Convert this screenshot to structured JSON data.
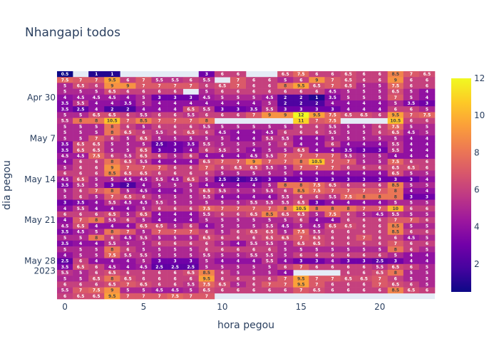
{
  "chart_data": {
    "type": "heatmap",
    "title": "Nhangapi todos",
    "xlabel": "hora pegou",
    "ylabel": "dia pegou",
    "x_range": [
      -0.5,
      23.5
    ],
    "x_tick_values": [
      0,
      5,
      10,
      15,
      20
    ],
    "x_tick_labels": [
      "0",
      "5",
      "10",
      "15",
      "20"
    ],
    "y_tick_labels": [
      "Apr 30",
      "May 7",
      "May 14",
      "May 21",
      "May 28\n2023"
    ],
    "y_tick_row_index": [
      4,
      11,
      18,
      25,
      32
    ],
    "colorscale": [
      "#0d0887",
      "#46039f",
      "#7201a8",
      "#9c179e",
      "#bd3786",
      "#d8576b",
      "#ed7953",
      "#fb9f3a",
      "#fdca26",
      "#f0f921"
    ],
    "color_range": [
      0.5,
      12
    ],
    "colorbar_ticks": [
      2,
      4,
      6,
      8,
      10,
      12
    ],
    "rows": [
      "0.5,,1,1,,,,,,3,6,6,,,6.5,7.5,6,6,6.5,6,6,8.5,7,6.5",
      "7.5,7,7,9.5,6,7,5.5,5.5,6,5.5,,7,6,6,5,6,9,7,6.5,6,6,9,6,6",
      "5,6.5,6,9,9,7,7,7,7,6,6.5,7,6,6,8,9.5,6.5,7,6.5,5,5,7.5,6,6",
      "5,5,5,6.5,6,6,6,6,,5,6,6,6,6,6,6,6,4.5,5,5,5,6.5,5,4",
      "4,4.5,4.5,4.5,4,5,3,3,3,4.5,5,5,5,4.5,2,2,1,3.5,5,5,5,7,5,4",
      "3.5,5.5,4,4,3.5,5,4,4,4,4,4,4,4,5,2,2,2,4,4,4,4,5,3.5,3",
      "3.5,2.5,4,2,2,4,4,4,6.5,5.5,3,3,3.5,5.5,3,3,3,3,4,4,4,6,6,5",
      "5,5,6.5,6.5,6,5.5,6,6,5.5,6,6,6,7,9,9,12,9.5,7.5,6.5,6.5,6,9.5,7,7.5",
      "5.5,8,8,10.5,7,8.5,7,7,7,8,,,,,,11,7,7.5,,,,10.5,6,6",
      "5,5,5,8,6,5,6,6,6,5.5,5,5,5,5,5,6,6,5.5,5,5,6,7.5,5,5",
      "5,5,5,8,6.5,6,5.5,6,6.5,6,4.5,4,4,4.5,6,6,6,5.5,5,5,6,6.5,4.5,5",
      "5,5,7,6,5,6.5,5,5,5,5,5,4,4,5.5,5.5,4,4,5,5,5,5,5,4,4",
      "3.5,6.5,6.5,5,5,5,2.5,3,3.5,5.5,5,5,5,5,6,4,4,6,4,4,4,5.5,4,4",
      "3.5,6.5,6.5,5,5,6.5,3,3,4,6,5.5,5,4,5,5,6.5,4,4,3.5,3,3,5.5,4,4",
      "4.5,4.5,7.5,6,5.5,6.5,6,5,6,4,4,4,4.5,5.5,7,7,7,7,5.5,5,5,4,4,4",
      "4,6,6,8,6.5,5.5,4,4,4,6.5,7,7,9,7,7,8,10.5,7,7,5,5,7.5,6,6",
      "5,6,6,9,7,7,7,6,6,7,6,6.5,6.5,5.5,5,7,7,7,6,6,6,6.5,6.5,6",
      "6,6,6,8.5,6.5,6.5,6,6,6,6,5,5,5,5,5,4,4,4,4,4,4,6.5,5,5",
      "4.5,6.5,5,5,4.5,4.5,5.5,4.5,6.5,5,2.5,2,2.5,3,3,3,3,3,3,3,3,3,3,4",
      "3.5,5.5,5,3,2,4,5,5,5,4,4,4,4,5,8,8,7.5,6.5,6,6,6,8.5,5,5",
      "5,6,7,8,5,4.5,4,4,5,6.5,5.5,5,5,5.5,6,8.5,7.5,7,7,7,7,8,4,4",
      "5,6,5,7,6.5,6,5,5,5,5.5,4,4,4,4,5.5,6,6,5.5,7.5,8,8,8,3,3",
      "3,3.5,4,5.5,4.5,4.5,5.5,5,5,5,5,5,5.5,5.5,5.5,6.5,3,4,4,4,4,5,5,5",
      "4,5.5,4,4,4,5,6,6,6,7.5,7,7,7,7,8,10.5,8,8,8,7,7,10,6,6",
      "6,6,6,6.5,5,6.5,4,4,4,5.5,6,6,6.5,8.5,6.5,6.5,5,7.5,6,5,4.5,5.5,5,5",
      "4,7,8,5.5,6,5,4,4,4,5,5,5,5,5,5,6,4,4,6,6,6,7,7,6",
      "4.5,6.5,4,4,4,6.5,6.5,5,6,4,5,5,5,5.5,4.5,5,4.5,6.5,6.5,6,6,8.5,5,5",
      "3.5,4.5,5,8,7,5,7,7,7,6,5,6,6.5,6.5,5,7.5,5.5,6,6,6,6,8.5,6,6",
      "5,5,8,6,4.5,5.5,5,5,5,6.5,6,6,6,6.5,6.5,7,6.5,6,6,7,6,6,4.5,5",
      "3.5,4,4,5.5,5,5,6,6,6,6,5,4,5.5,5.5,5,6.5,6.5,6,6,6,6,7,6,6",
      "5,5,5,8,6,5,5,5,5,6,6,6,6,6,5,5,5,5,5,5,5,8,6,5",
      "4,5,5,7.5,5.5,5.5,5,5,5,5.5,5,5,5.5,5.5,5,6,6,6,6,6,6,5,4,4",
      "2.5,6,4,4,4,5,3,3,3,5,4,4,4,5.5,4,3,3,4,3,3,2.5,3,4,4",
      "3.5,6.5,6,4.5,4,4.5,2.5,2.5,2.5,5,5,5,5,5,6,7,6,6,6,6,5.5,6.5,6,5",
      "5.5,5,6,6.5,6,6,6,6,6.5,8.5,6,5,5,5,4,,,,6,6,6.5,8,5,5",
      "5,5,6.5,8,6.5,6,6,6,6,9.5,6,6,6,6,7,9.5,7,7,6.5,6.5,7,6,5,5",
      "6,6,6,6.5,7,6.5,6,6,5.5,7.5,6.5,5,6,7,7,9.5,7,6,6,6,7,6.5,6,5",
      "5.5,7,7.5,9,5,5,4.5,4.5,5,6.5,6,6,6,6,6,7,6.5,6,6,6,6,8.5,6.5,6",
      "6,6.5,6.5,9.5,7,7,7,7.5,7,7,,,,,,,,,,,,,,"
    ]
  }
}
